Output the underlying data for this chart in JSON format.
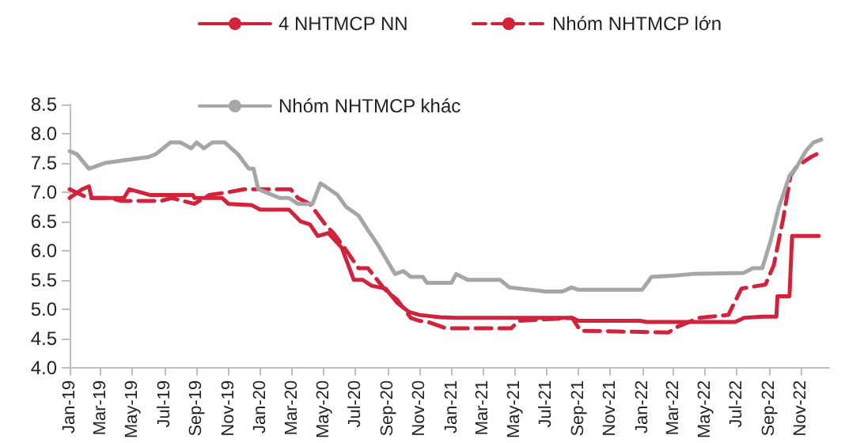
{
  "chart_data": {
    "type": "line",
    "legend": "top",
    "grid": false,
    "marker": "none",
    "xlim": [
      "2019-01-01",
      "2022-12-25"
    ],
    "xticks": [
      {
        "value": "2019-01",
        "label": "Jan-19"
      },
      {
        "value": "2019-03",
        "label": "Mar-19"
      },
      {
        "value": "2019-05",
        "label": "May-19"
      },
      {
        "value": "2019-07",
        "label": "Jul-19"
      },
      {
        "value": "2019-09",
        "label": "Sep-19"
      },
      {
        "value": "2019-11",
        "label": "Nov-19"
      },
      {
        "value": "2020-01",
        "label": "Jan-20"
      },
      {
        "value": "2020-03",
        "label": "Mar-20"
      },
      {
        "value": "2020-05",
        "label": "May-20"
      },
      {
        "value": "2020-07",
        "label": "Jul-20"
      },
      {
        "value": "2020-09",
        "label": "Sep-20"
      },
      {
        "value": "2020-11",
        "label": "Nov-20"
      },
      {
        "value": "2021-01",
        "label": "Jan-21"
      },
      {
        "value": "2021-03",
        "label": "Mar-21"
      },
      {
        "value": "2021-05",
        "label": "May-21"
      },
      {
        "value": "2021-07",
        "label": "Jul-21"
      },
      {
        "value": "2021-09",
        "label": "Sep-21"
      },
      {
        "value": "2021-11",
        "label": "Nov-21"
      },
      {
        "value": "2022-01",
        "label": "Jan-22"
      },
      {
        "value": "2022-03",
        "label": "Mar-22"
      },
      {
        "value": "2022-05",
        "label": "May-22"
      },
      {
        "value": "2022-07",
        "label": "Jul-22"
      },
      {
        "value": "2022-09",
        "label": "Sep-22"
      },
      {
        "value": "2022-11",
        "label": "Nov-22"
      }
    ],
    "ylim": [
      4.0,
      8.5
    ],
    "yticks": [
      {
        "value": 4,
        "label": "4.0"
      },
      {
        "value": 4.5,
        "label": "4.5"
      },
      {
        "value": 5,
        "label": "5.0"
      },
      {
        "value": 5.5,
        "label": "5.5"
      },
      {
        "value": 6,
        "label": "6.0"
      },
      {
        "value": 6.5,
        "label": "6.5"
      },
      {
        "value": 7,
        "label": "7.0"
      },
      {
        "value": 7.5,
        "label": "7.5"
      },
      {
        "value": 8,
        "label": "8.0"
      },
      {
        "value": 8.5,
        "label": "8.5"
      }
    ],
    "series": [
      {
        "name": "4 NHTMCP NN",
        "color": "#d2233c",
        "line_style": "solid",
        "x": [
          "2019-01-01",
          "2019-01-25",
          "2019-02-07",
          "2019-02-12",
          "2019-04-15",
          "2019-04-25",
          "2019-06-05",
          "2019-08-25",
          "2019-08-28",
          "2019-10-20",
          "2019-11-01",
          "2019-12-15",
          "2020-01-01",
          "2020-02-25",
          "2020-03-18",
          "2020-04-05",
          "2020-04-20",
          "2020-05-10",
          "2020-06-05",
          "2020-06-28",
          "2020-07-15",
          "2020-08-01",
          "2020-08-28",
          "2020-09-20",
          "2020-10-12",
          "2020-11-01",
          "2020-12-10",
          "2021-01-10",
          "2021-08-20",
          "2021-09-01",
          "2021-12-28",
          "2022-01-10",
          "2022-06-28",
          "2022-07-15",
          "2022-08-20",
          "2022-09-15",
          "2022-09-17",
          "2022-10-10",
          "2022-10-15",
          "2022-12-05"
        ],
        "values": [
          6.9,
          7.05,
          7.1,
          6.9,
          6.9,
          7.05,
          6.95,
          6.95,
          6.9,
          6.9,
          6.8,
          6.78,
          6.7,
          6.7,
          6.5,
          6.45,
          6.25,
          6.3,
          6.05,
          5.5,
          5.5,
          5.4,
          5.35,
          5.1,
          4.95,
          4.9,
          4.86,
          4.85,
          4.85,
          4.8,
          4.8,
          4.78,
          4.78,
          4.85,
          4.87,
          4.87,
          5.22,
          5.22,
          6.25,
          6.25
        ]
      },
      {
        "name": "Nhóm NHTMCP lớn",
        "color": "#d2233c",
        "line_style": "dashed",
        "x": [
          "2019-01-01",
          "2019-02-05",
          "2019-03-20",
          "2019-04-10",
          "2019-06-25",
          "2019-07-15",
          "2019-08-28",
          "2019-09-25",
          "2019-11-01",
          "2019-12-01",
          "2020-02-28",
          "2020-03-13",
          "2020-04-05",
          "2020-05-04",
          "2020-05-20",
          "2020-06-10",
          "2020-07-07",
          "2020-07-25",
          "2020-08-25",
          "2020-09-20",
          "2020-10-15",
          "2020-11-01",
          "2020-11-20",
          "2020-12-22",
          "2021-04-25",
          "2021-05-10",
          "2021-08-20",
          "2021-09-05",
          "2022-02-20",
          "2022-03-10",
          "2022-04-20",
          "2022-06-15",
          "2022-07-10",
          "2022-08-25",
          "2022-09-10",
          "2022-09-28",
          "2022-10-12",
          "2022-10-25",
          "2022-11-20",
          "2022-12-01"
        ],
        "values": [
          7.05,
          6.9,
          6.9,
          6.85,
          6.85,
          6.9,
          6.8,
          6.95,
          7.0,
          7.05,
          7.05,
          6.9,
          6.8,
          6.45,
          6.3,
          6.05,
          5.7,
          5.7,
          5.35,
          5.15,
          4.85,
          4.8,
          4.77,
          4.67,
          4.67,
          4.8,
          4.85,
          4.63,
          4.6,
          4.7,
          4.85,
          4.9,
          5.35,
          5.42,
          5.75,
          6.55,
          7.28,
          7.45,
          7.6,
          7.65
        ]
      },
      {
        "name": "Nhóm NHTMCP khác",
        "color": "#a6a6a6",
        "line_style": "solid",
        "x": [
          "2019-01-01",
          "2019-01-15",
          "2019-02-07",
          "2019-03-10",
          "2019-04-19",
          "2019-06-01",
          "2019-06-15",
          "2019-07-13",
          "2019-08-01",
          "2019-08-22",
          "2019-09-01",
          "2019-09-15",
          "2019-10-01",
          "2019-10-25",
          "2019-11-19",
          "2019-12-10",
          "2019-12-19",
          "2019-12-28",
          "2020-02-07",
          "2020-02-25",
          "2020-03-13",
          "2020-04-10",
          "2020-04-25",
          "2020-05-04",
          "2020-05-28",
          "2020-06-13",
          "2020-07-07",
          "2020-07-25",
          "2020-08-13",
          "2020-09-15",
          "2020-10-01",
          "2020-10-15",
          "2020-11-07",
          "2020-11-15",
          "2021-01-01",
          "2021-01-10",
          "2021-02-01",
          "2021-04-04",
          "2021-04-22",
          "2021-07-01",
          "2021-08-01",
          "2021-08-19",
          "2021-09-01",
          "2022-01-01",
          "2022-01-19",
          "2022-03-01",
          "2022-04-07",
          "2022-07-15",
          "2022-08-01",
          "2022-08-19",
          "2022-09-04",
          "2022-09-19",
          "2022-10-10",
          "2022-10-25",
          "2022-11-10",
          "2022-11-25",
          "2022-12-10"
        ],
        "values": [
          7.7,
          7.65,
          7.4,
          7.5,
          7.55,
          7.6,
          7.65,
          7.85,
          7.85,
          7.75,
          7.85,
          7.75,
          7.85,
          7.85,
          7.65,
          7.4,
          7.4,
          7.05,
          6.9,
          6.9,
          6.8,
          6.8,
          7.15,
          7.1,
          6.95,
          6.75,
          6.6,
          6.35,
          6.1,
          5.6,
          5.65,
          5.55,
          5.55,
          5.45,
          5.45,
          5.6,
          5.5,
          5.5,
          5.37,
          5.3,
          5.3,
          5.37,
          5.33,
          5.33,
          5.55,
          5.57,
          5.6,
          5.62,
          5.7,
          5.7,
          6.17,
          6.72,
          7.28,
          7.45,
          7.7,
          7.85,
          7.9
        ]
      }
    ]
  }
}
